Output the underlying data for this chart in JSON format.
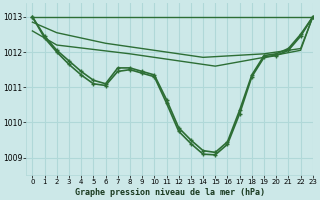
{
  "bg_color": "#cce8e8",
  "line_color": "#2d6e35",
  "grid_color": "#b0d8d8",
  "xlabel": "Graphe pression niveau de la mer (hPa)",
  "ylim": [
    1008.5,
    1013.4
  ],
  "xlim": [
    -0.5,
    23
  ],
  "yticks": [
    1009,
    1010,
    1011,
    1012,
    1013
  ],
  "xticks": [
    0,
    1,
    2,
    3,
    4,
    5,
    6,
    7,
    8,
    9,
    10,
    11,
    12,
    13,
    14,
    15,
    16,
    17,
    18,
    19,
    20,
    21,
    22,
    23
  ],
  "series": [
    {
      "x": [
        0,
        23
      ],
      "y": [
        1013.0,
        1013.0
      ],
      "marker": false,
      "lw": 1.0
    },
    {
      "x": [
        0,
        2,
        6,
        14,
        19,
        22,
        23
      ],
      "y": [
        1012.85,
        1012.55,
        1012.25,
        1011.85,
        1011.95,
        1012.1,
        1013.0
      ],
      "marker": false,
      "lw": 1.0
    },
    {
      "x": [
        0,
        2,
        8,
        15,
        19,
        22,
        23
      ],
      "y": [
        1012.6,
        1012.2,
        1011.95,
        1011.6,
        1011.85,
        1012.05,
        1013.0
      ],
      "marker": false,
      "lw": 1.0
    },
    {
      "x": [
        0,
        1,
        2,
        3,
        4,
        5,
        6,
        7,
        8,
        9,
        10,
        11,
        12,
        13,
        14,
        15,
        16,
        17,
        18,
        19,
        20,
        21,
        22,
        23
      ],
      "y": [
        1013.0,
        1012.45,
        1012.05,
        1011.75,
        1011.45,
        1011.2,
        1011.1,
        1011.55,
        1011.55,
        1011.45,
        1011.35,
        1010.65,
        1009.85,
        1009.5,
        1009.2,
        1009.15,
        1009.45,
        1010.35,
        1011.35,
        1011.9,
        1011.95,
        1012.1,
        1012.5,
        1013.0
      ],
      "marker": true,
      "lw": 1.2
    },
    {
      "x": [
        0,
        1,
        2,
        3,
        4,
        5,
        6,
        7,
        8,
        9,
        10,
        11,
        12,
        13,
        14,
        15,
        16,
        17,
        18,
        19,
        20,
        21,
        22,
        23
      ],
      "y": [
        1013.0,
        1012.4,
        1012.0,
        1011.65,
        1011.35,
        1011.1,
        1011.05,
        1011.45,
        1011.5,
        1011.4,
        1011.3,
        1010.55,
        1009.75,
        1009.4,
        1009.1,
        1009.08,
        1009.38,
        1010.25,
        1011.3,
        1011.85,
        1011.9,
        1012.05,
        1012.45,
        1013.0
      ],
      "marker": true,
      "lw": 1.2
    }
  ]
}
